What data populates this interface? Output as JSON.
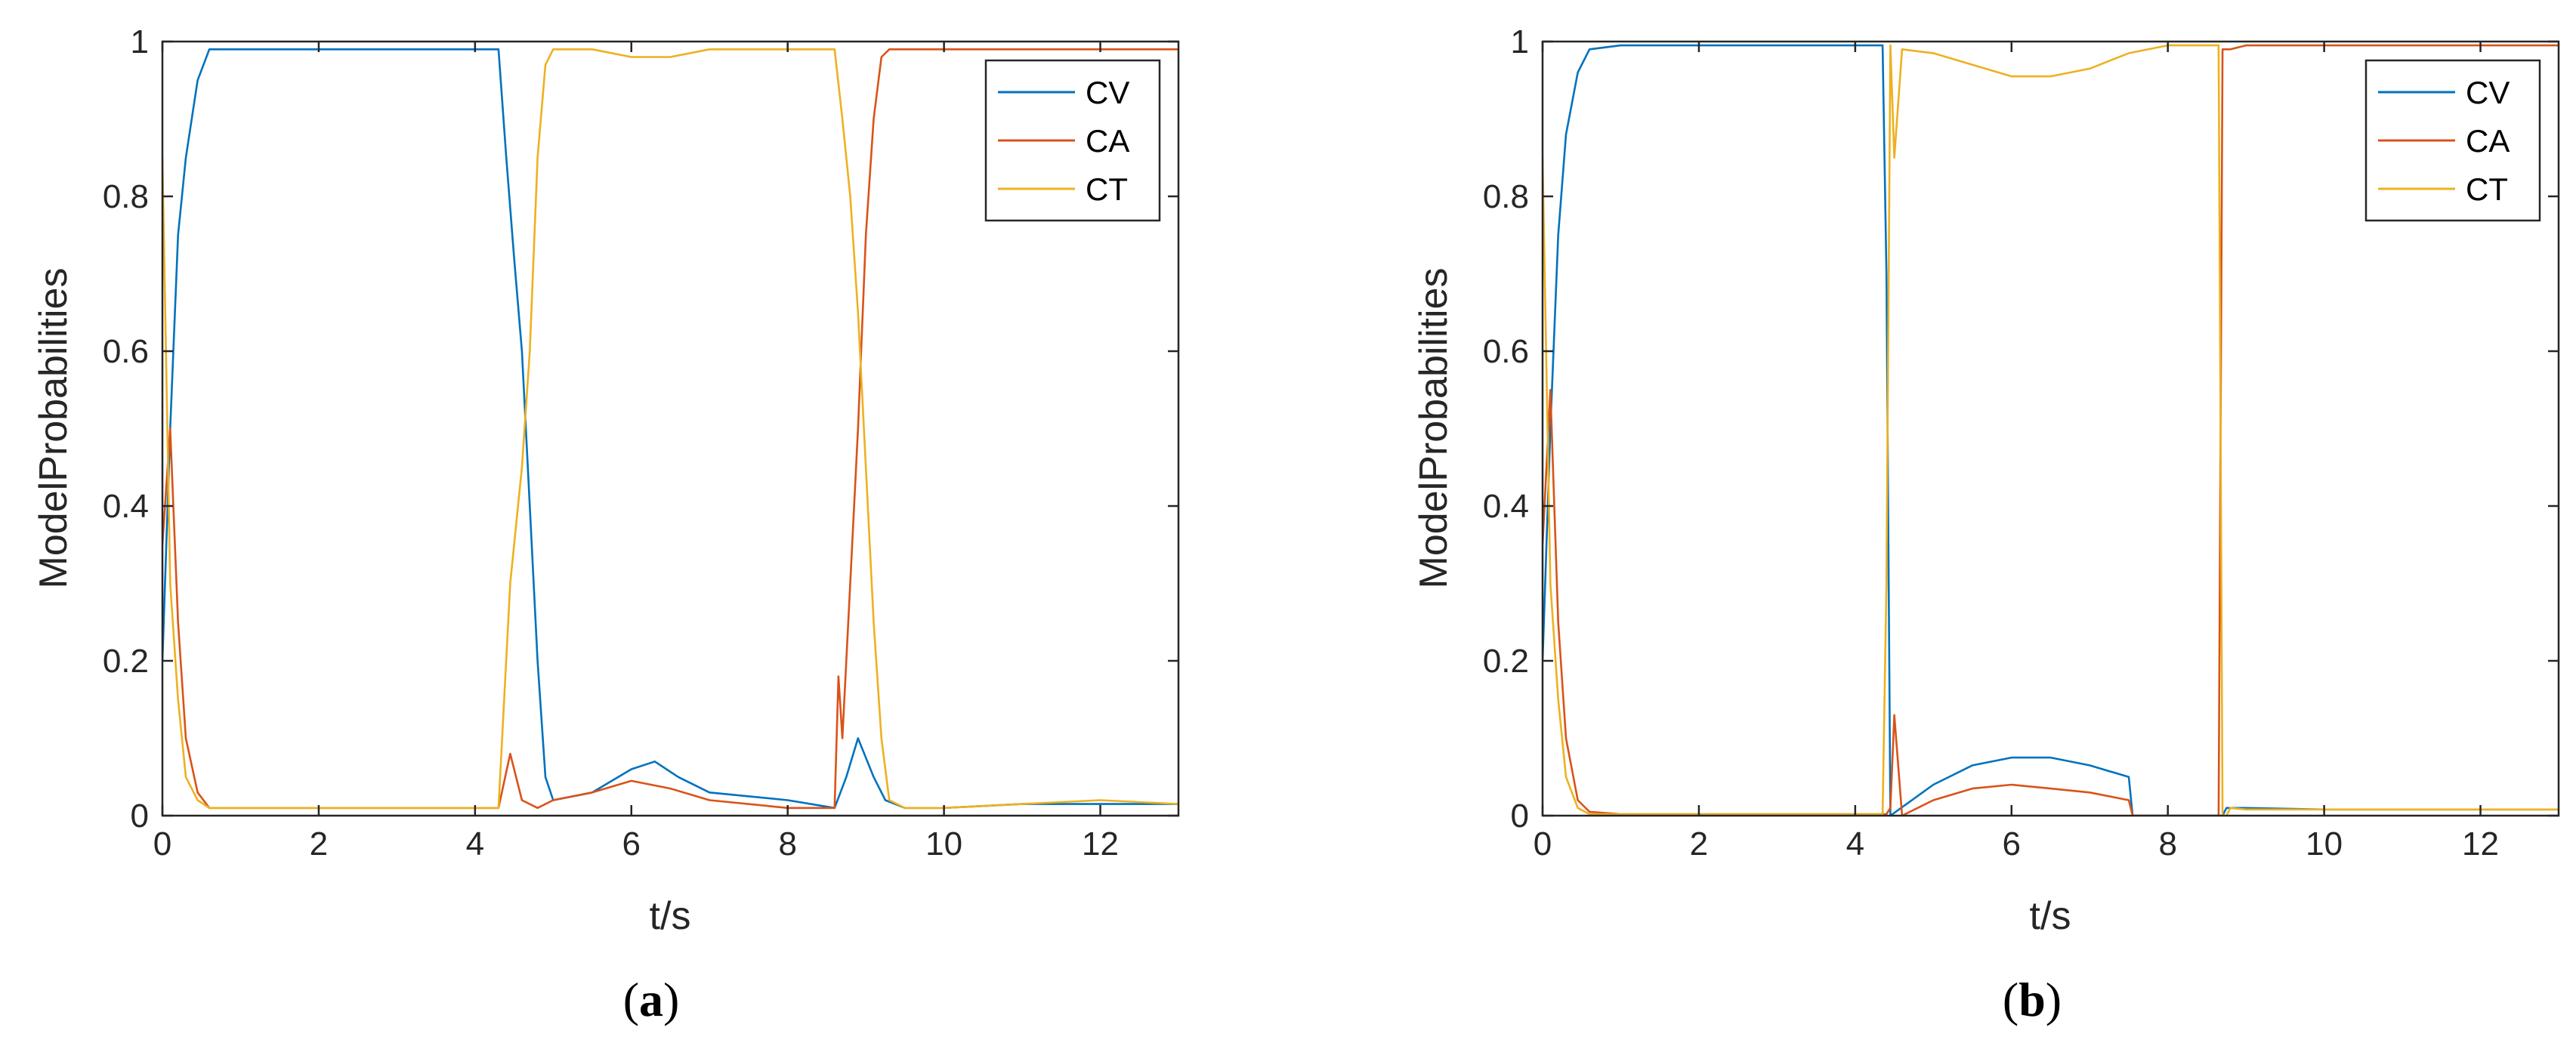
{
  "colors": {
    "CV": "#0072BD",
    "CA": "#D95319",
    "CT": "#EDB120",
    "axis": "#262626"
  },
  "chart_data": [
    {
      "type": "line",
      "panel_label": "a",
      "title": "",
      "xlabel": "t/s",
      "ylabel": "ModelProbabilities",
      "xlim": [
        0,
        13
      ],
      "ylim": [
        0,
        1
      ],
      "xticks": [
        0,
        2,
        4,
        6,
        8,
        10,
        12
      ],
      "yticks": [
        0,
        0.2,
        0.4,
        0.6,
        0.8,
        1
      ],
      "xtick_labels": [
        "0",
        "2",
        "4",
        "6",
        "8",
        "10",
        "12"
      ],
      "ytick_labels": [
        "0",
        "0.2",
        "0.4",
        "0.6",
        "0.8",
        "1"
      ],
      "legend_position": "top-right",
      "series": [
        {
          "name": "CV",
          "x": [
            0,
            0.1,
            0.2,
            0.3,
            0.45,
            0.6,
            1,
            2,
            3,
            4,
            4.3,
            4.4,
            4.5,
            4.6,
            4.7,
            4.8,
            4.9,
            5,
            5.5,
            6,
            6.3,
            6.6,
            7,
            8,
            8.6,
            8.75,
            8.9,
            9.1,
            9.25,
            9.5,
            10,
            11,
            12,
            13
          ],
          "values": [
            0.2,
            0.5,
            0.75,
            0.85,
            0.95,
            0.99,
            0.99,
            0.99,
            0.99,
            0.99,
            0.99,
            0.85,
            0.72,
            0.6,
            0.4,
            0.2,
            0.05,
            0.02,
            0.03,
            0.06,
            0.07,
            0.05,
            0.03,
            0.02,
            0.01,
            0.05,
            0.1,
            0.05,
            0.02,
            0.01,
            0.01,
            0.015,
            0.015,
            0.015
          ]
        },
        {
          "name": "CA",
          "x": [
            0,
            0.1,
            0.2,
            0.3,
            0.45,
            0.6,
            1,
            2,
            3,
            4,
            4.3,
            4.45,
            4.6,
            4.8,
            5,
            5.5,
            6,
            6.5,
            7,
            8,
            8.6,
            8.65,
            8.7,
            8.8,
            8.9,
            9,
            9.1,
            9.2,
            9.3,
            9.5,
            10,
            11,
            12,
            13
          ],
          "values": [
            0.35,
            0.5,
            0.25,
            0.1,
            0.03,
            0.01,
            0.01,
            0.01,
            0.01,
            0.01,
            0.01,
            0.08,
            0.02,
            0.01,
            0.02,
            0.03,
            0.045,
            0.035,
            0.02,
            0.01,
            0.01,
            0.18,
            0.1,
            0.3,
            0.5,
            0.75,
            0.9,
            0.98,
            0.99,
            0.99,
            0.99,
            0.99,
            0.99,
            0.99
          ]
        },
        {
          "name": "CT",
          "x": [
            0,
            0.1,
            0.2,
            0.3,
            0.45,
            0.6,
            1,
            2,
            3,
            4,
            4.3,
            4.45,
            4.6,
            4.7,
            4.8,
            4.9,
            5,
            5.5,
            6,
            6.5,
            7,
            8,
            8.6,
            8.7,
            8.8,
            8.9,
            9,
            9.1,
            9.2,
            9.3,
            9.5,
            10,
            11,
            12,
            13
          ],
          "values": [
            0.85,
            0.3,
            0.15,
            0.05,
            0.02,
            0.01,
            0.01,
            0.01,
            0.01,
            0.01,
            0.01,
            0.3,
            0.45,
            0.6,
            0.85,
            0.97,
            0.99,
            0.99,
            0.98,
            0.98,
            0.99,
            0.99,
            0.99,
            0.9,
            0.8,
            0.65,
            0.45,
            0.25,
            0.1,
            0.02,
            0.01,
            0.01,
            0.015,
            0.02,
            0.015
          ]
        }
      ]
    },
    {
      "type": "line",
      "panel_label": "b",
      "title": "",
      "xlabel": "t/s",
      "ylabel": "ModelProbabilities",
      "xlim": [
        0,
        13
      ],
      "ylim": [
        0,
        1
      ],
      "xticks": [
        0,
        2,
        4,
        6,
        8,
        10,
        12
      ],
      "yticks": [
        0,
        0.2,
        0.4,
        0.6,
        0.8,
        1
      ],
      "xtick_labels": [
        "0",
        "2",
        "4",
        "6",
        "8",
        "10",
        "12"
      ],
      "ytick_labels": [
        "0",
        "0.2",
        "0.4",
        "0.6",
        "0.8",
        "1"
      ],
      "legend_position": "top-right",
      "series": [
        {
          "name": "CV",
          "x": [
            0,
            0.1,
            0.2,
            0.3,
            0.45,
            0.6,
            1,
            2,
            3,
            4,
            4.35,
            4.4,
            4.45,
            5,
            5.5,
            6,
            6.5,
            7,
            7.5,
            7.55,
            8,
            8.7,
            8.75,
            9,
            10,
            11,
            12,
            13
          ],
          "values": [
            0.2,
            0.5,
            0.75,
            0.88,
            0.96,
            0.99,
            0.995,
            0.995,
            0.995,
            0.995,
            0.995,
            0.7,
            0.0,
            0.04,
            0.065,
            0.075,
            0.075,
            0.065,
            0.05,
            0.0,
            0.0,
            0.0,
            0.01,
            0.01,
            0.008,
            0.008,
            0.008,
            0.008
          ]
        },
        {
          "name": "CA",
          "x": [
            0,
            0.1,
            0.2,
            0.3,
            0.45,
            0.6,
            1,
            2,
            3,
            4,
            4.4,
            4.45,
            4.5,
            4.6,
            5,
            5.5,
            6,
            6.5,
            7,
            7.5,
            7.55,
            8,
            8.65,
            8.7,
            8.75,
            8.8,
            9,
            10,
            11,
            12,
            13
          ],
          "values": [
            0.35,
            0.55,
            0.25,
            0.1,
            0.02,
            0.005,
            0.002,
            0.002,
            0.002,
            0.002,
            0.002,
            0.01,
            0.13,
            0.0,
            0.02,
            0.035,
            0.04,
            0.035,
            0.03,
            0.02,
            0.0,
            0.0,
            0.0,
            0.99,
            0.99,
            0.99,
            0.995,
            0.995,
            0.995,
            0.995,
            0.995
          ]
        },
        {
          "name": "CT",
          "x": [
            0,
            0.1,
            0.2,
            0.3,
            0.45,
            0.6,
            1,
            2,
            3,
            4,
            4.35,
            4.4,
            4.45,
            4.5,
            4.6,
            5,
            5.5,
            6,
            6.5,
            7,
            7.5,
            8,
            8.5,
            8.65,
            8.7,
            8.75,
            8.8,
            9,
            10,
            11,
            12,
            13
          ],
          "values": [
            0.85,
            0.3,
            0.15,
            0.05,
            0.01,
            0.002,
            0.002,
            0.002,
            0.002,
            0.002,
            0.002,
            0.3,
            0.995,
            0.85,
            0.99,
            0.985,
            0.97,
            0.955,
            0.955,
            0.965,
            0.985,
            0.995,
            0.995,
            0.995,
            0.0,
            0.0,
            0.01,
            0.008,
            0.008,
            0.008,
            0.008,
            0.008
          ]
        }
      ]
    }
  ]
}
